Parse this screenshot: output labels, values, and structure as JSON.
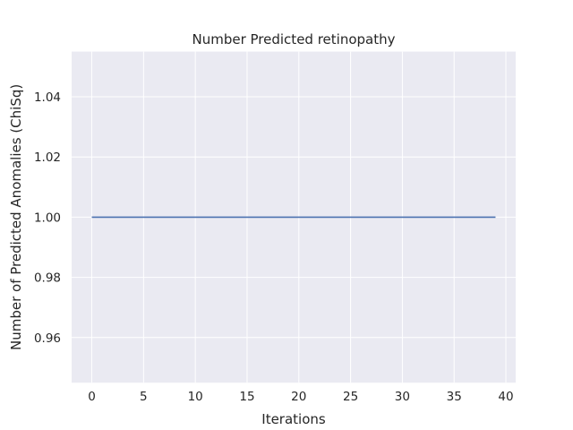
{
  "chart_data": {
    "type": "line",
    "title": "Number Predicted retinopathy",
    "xlabel": "Iterations",
    "ylabel": "Number of Predicted Anomalies (ChiSq)",
    "xlim": [
      -1.95,
      40.95
    ],
    "ylim": [
      0.945,
      1.055
    ],
    "x_ticks": [
      0,
      5,
      10,
      15,
      20,
      25,
      30,
      35,
      40
    ],
    "y_ticks": [
      0.96,
      0.98,
      1.0,
      1.02,
      1.04
    ],
    "y_tick_labels": [
      "0.96",
      "0.98",
      "1.00",
      "1.02",
      "1.04"
    ],
    "grid": true,
    "series": [
      {
        "color": "#4c72b0",
        "x": [
          0,
          1,
          2,
          3,
          4,
          5,
          6,
          7,
          8,
          9,
          10,
          11,
          12,
          13,
          14,
          15,
          16,
          17,
          18,
          19,
          20,
          21,
          22,
          23,
          24,
          25,
          26,
          27,
          28,
          29,
          30,
          31,
          32,
          33,
          34,
          35,
          36,
          37,
          38,
          39
        ],
        "values": [
          1,
          1,
          1,
          1,
          1,
          1,
          1,
          1,
          1,
          1,
          1,
          1,
          1,
          1,
          1,
          1,
          1,
          1,
          1,
          1,
          1,
          1,
          1,
          1,
          1,
          1,
          1,
          1,
          1,
          1,
          1,
          1,
          1,
          1,
          1,
          1,
          1,
          1,
          1,
          1
        ]
      }
    ],
    "colors": {
      "plot_background": "#eaeaf2",
      "grid": "#ffffff",
      "text": "#262626"
    }
  }
}
